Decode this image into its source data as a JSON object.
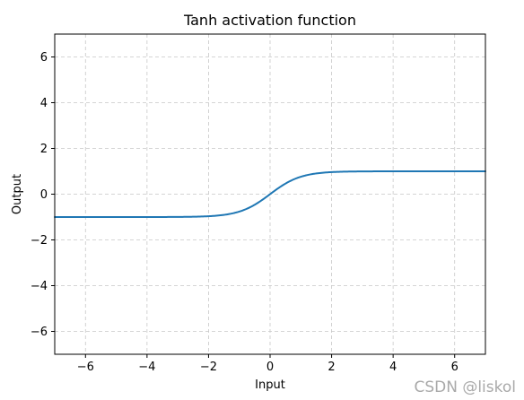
{
  "chart_data": {
    "type": "line",
    "title": "Tanh activation function",
    "xlabel": "Input",
    "ylabel": "Output",
    "xlim": [
      -7,
      7
    ],
    "ylim": [
      -7,
      7
    ],
    "grid": true,
    "grid_style": "dashed",
    "function": "tanh(x)",
    "x_ticks": [
      -6,
      -4,
      -2,
      0,
      2,
      4,
      6
    ],
    "y_ticks": [
      -6,
      -4,
      -2,
      0,
      2,
      4,
      6
    ],
    "x_tick_labels": [
      "−6",
      "−4",
      "−2",
      "0",
      "2",
      "4",
      "6"
    ],
    "y_tick_labels": [
      "−6",
      "−4",
      "−2",
      "0",
      "2",
      "4",
      "6"
    ],
    "series": [
      {
        "color": "#1f77b4",
        "x": [
          -7,
          -6,
          -5,
          -4,
          -3,
          -2.5,
          -2,
          -1.5,
          -1,
          -0.75,
          -0.5,
          -0.25,
          0,
          0.25,
          0.5,
          0.75,
          1,
          1.5,
          2,
          2.5,
          3,
          4,
          5,
          6,
          7
        ],
        "y": [
          -1.0,
          -1.0,
          -0.9999,
          -0.9993,
          -0.9951,
          -0.9866,
          -0.964,
          -0.9051,
          -0.7616,
          -0.6351,
          -0.4621,
          -0.2449,
          0.0,
          0.2449,
          0.4621,
          0.6351,
          0.7616,
          0.9051,
          0.964,
          0.9866,
          0.9951,
          0.9993,
          0.9999,
          1.0,
          1.0
        ]
      }
    ]
  },
  "watermark": "CSDN @liskol"
}
